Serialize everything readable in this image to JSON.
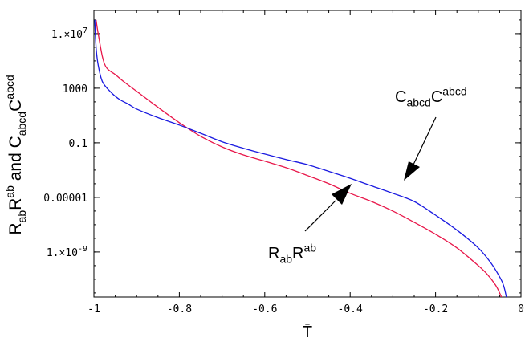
{
  "chart_data": {
    "type": "line",
    "xlabel": "T̄",
    "ylabel": {
      "parts": [
        {
          "t": "R",
          "s": "base"
        },
        {
          "t": "ab",
          "s": "sub"
        },
        {
          "t": "R",
          "s": "base"
        },
        {
          "t": "ab",
          "s": "sup"
        },
        {
          "t": " and C",
          "s": "base"
        },
        {
          "t": "abcd",
          "s": "sub"
        },
        {
          "t": "C",
          "s": "base"
        },
        {
          "t": "abcd",
          "s": "sup"
        }
      ]
    },
    "xlim": [
      -1,
      0
    ],
    "ylim_log10": [
      -12.3,
      8.7
    ],
    "y_scale": "log",
    "grid": false,
    "x_ticks": [
      {
        "v": -1,
        "label": "-1"
      },
      {
        "v": -0.8,
        "label": "-0.8"
      },
      {
        "v": -0.6,
        "label": "-0.6"
      },
      {
        "v": -0.4,
        "label": "-0.4"
      },
      {
        "v": -0.2,
        "label": "-0.2"
      },
      {
        "v": 0,
        "label": "0"
      }
    ],
    "y_ticks": [
      {
        "v": 10000000,
        "label": "1.×10",
        "exp": "7"
      },
      {
        "v": 1000,
        "label": "1000"
      },
      {
        "v": 0.1,
        "label": "0.1"
      },
      {
        "v": 1e-05,
        "label": "0.00001"
      },
      {
        "v": 1e-09,
        "label": "1.×10",
        "exp": "-9"
      }
    ],
    "series": [
      {
        "color": "#e8174a",
        "x": [
          -0.995,
          -0.99,
          -0.98,
          -0.97,
          -0.95,
          -0.93,
          -0.9,
          -0.85,
          -0.8,
          -0.75,
          -0.7,
          -0.65,
          -0.6,
          -0.55,
          -0.5,
          -0.45,
          -0.4,
          -0.35,
          -0.3,
          -0.25,
          -0.2,
          -0.15,
          -0.1,
          -0.08,
          -0.06,
          -0.05,
          -0.04,
          -0.035,
          -0.03
        ],
        "y": [
          100000000.0,
          10000000.0,
          200000.0,
          30000.0,
          10000.0,
          3000,
          600,
          40,
          3,
          0.3,
          0.05,
          0.013,
          0.0045,
          0.0015,
          0.0004,
          0.0001,
          2e-05,
          5e-06,
          1e-06,
          1.5e-07,
          2e-08,
          2e-09,
          1e-10,
          2.5e-11,
          4e-12,
          1e-12,
          1.5e-13,
          1e-14,
          1e-15
        ]
      },
      {
        "color": "#1a1ae0",
        "x": [
          -0.998,
          -0.995,
          -0.99,
          -0.98,
          -0.96,
          -0.94,
          -0.92,
          -0.9,
          -0.85,
          -0.8,
          -0.75,
          -0.7,
          -0.65,
          -0.6,
          -0.55,
          -0.5,
          -0.45,
          -0.4,
          -0.35,
          -0.3,
          -0.25,
          -0.2,
          -0.15,
          -0.1,
          -0.07,
          -0.05,
          -0.04,
          -0.03,
          -0.02
        ],
        "y": [
          100000000.0,
          1000000.0,
          50000.0,
          3000,
          500,
          150,
          70,
          30,
          7,
          2,
          0.5,
          0.12,
          0.04,
          0.015,
          0.006,
          0.0025,
          0.0008,
          0.00025,
          7e-05,
          2e-05,
          5e-06,
          5e-07,
          4e-08,
          2e-09,
          1.5e-10,
          1.5e-11,
          3e-12,
          1e-13,
          1e-15
        ]
      }
    ],
    "annotations": [
      {
        "parts": [
          {
            "t": "C",
            "s": "base"
          },
          {
            "t": "abcd",
            "s": "sub"
          },
          {
            "t": "C",
            "s": "base"
          },
          {
            "t": "abcd",
            "s": "sup"
          }
        ]
      },
      {
        "parts": [
          {
            "t": "R",
            "s": "base"
          },
          {
            "t": "ab",
            "s": "sub"
          },
          {
            "t": "R",
            "s": "base"
          },
          {
            "t": "ab",
            "s": "sup"
          }
        ]
      }
    ]
  }
}
